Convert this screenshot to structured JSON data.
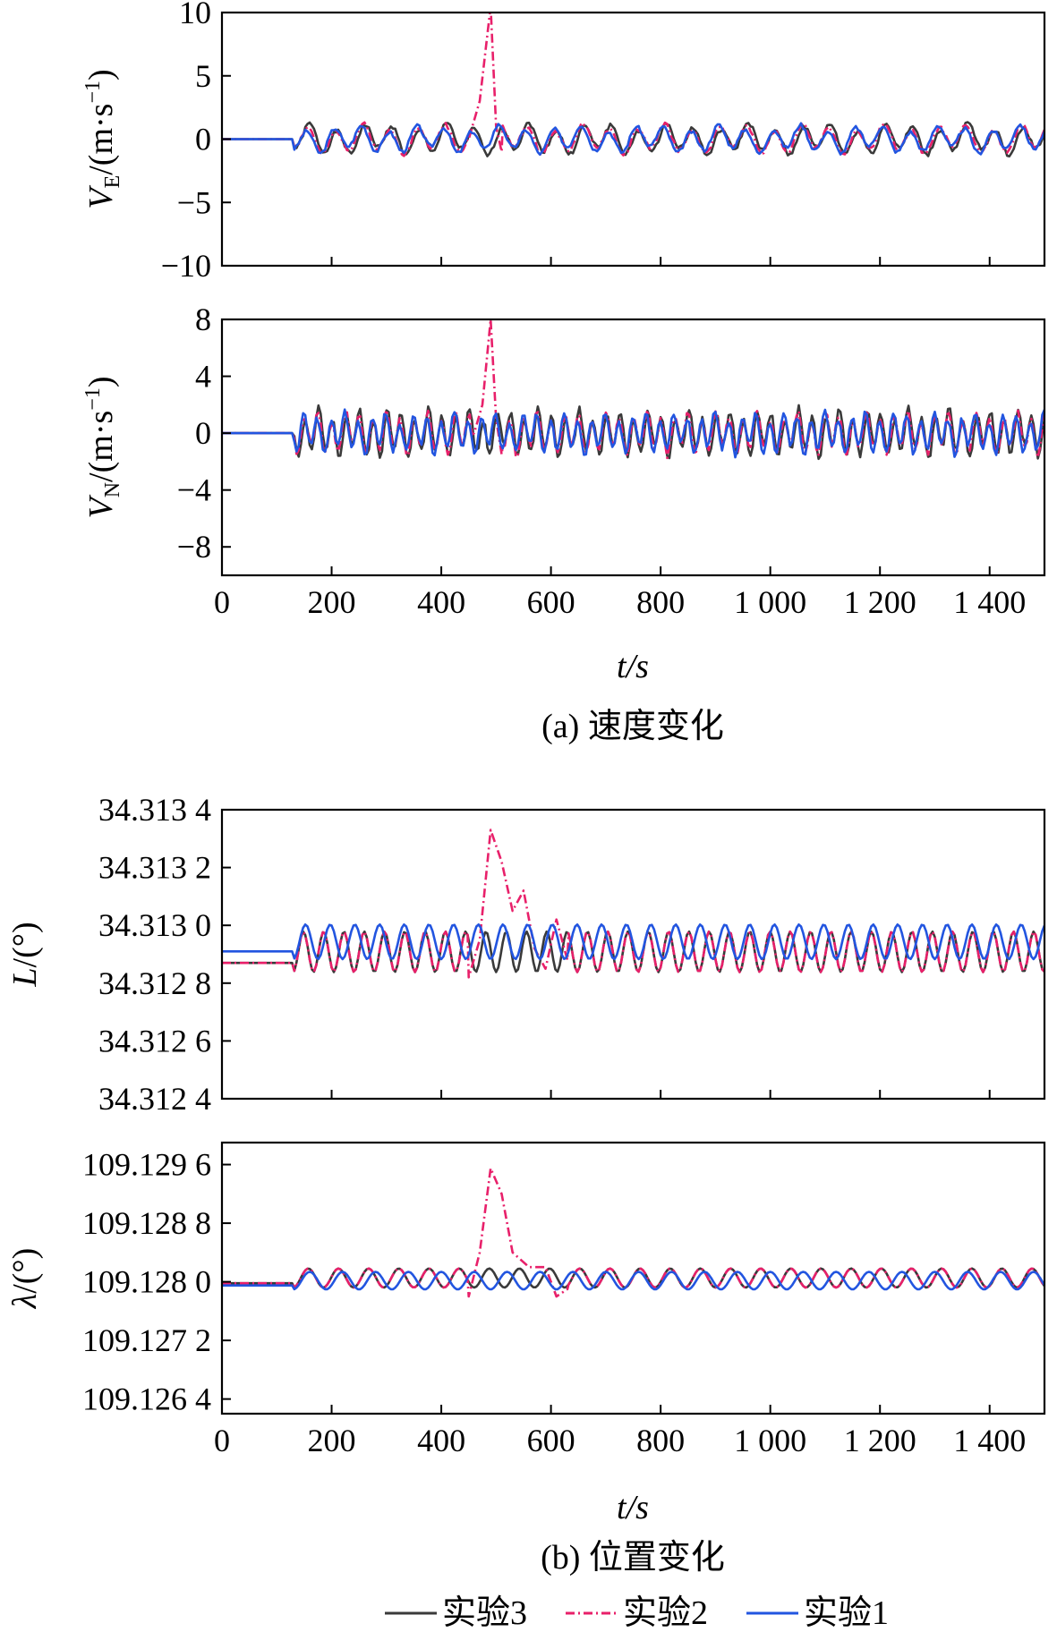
{
  "legend": [
    {
      "label": "实验3",
      "color": "#3a3a3a",
      "dash": ""
    },
    {
      "label": "实验2",
      "color": "#e8206a",
      "dash": "10 4 2 4"
    },
    {
      "label": "实验1",
      "color": "#2255e0",
      "dash": ""
    }
  ],
  "captions": {
    "a": "(a) 速度变化",
    "b": "(b) 位置变化"
  },
  "xlabel": "t/s",
  "chart_data": [
    {
      "id": "ve",
      "type": "line",
      "ylabel_main": "V",
      "ylabel_sub": "E",
      "ylabel_unit": "/(m·s",
      "ylabel_exp": "−1",
      "ylabel_close": ")",
      "xlim": [
        0,
        1500
      ],
      "ylim": [
        -10,
        10
      ],
      "yticks": [
        10,
        5,
        0,
        -5,
        -10
      ],
      "ytick_labels": [
        "10",
        "5",
        "0",
        "−5",
        "−10"
      ],
      "xticks": [
        0,
        200,
        400,
        600,
        800,
        1000,
        1200,
        1400
      ],
      "xtick_labels": [],
      "series": [
        {
          "name": "实验3",
          "kind": "vel",
          "amp": 0.95,
          "period": 50,
          "seed": 1
        },
        {
          "name": "实验2",
          "kind": "vel",
          "amp": 0.9,
          "period": 50,
          "seed": 2,
          "spike": {
            "x": [
              450,
              470,
              490,
              500,
              510
            ],
            "y": [
              0,
              3,
              10.5,
              1,
              -1
            ]
          }
        },
        {
          "name": "实验1",
          "kind": "vel",
          "amp": 0.85,
          "period": 50,
          "seed": 3
        }
      ]
    },
    {
      "id": "vn",
      "type": "line",
      "ylabel_main": "V",
      "ylabel_sub": "N",
      "ylabel_unit": "/(m·s",
      "ylabel_exp": "−1",
      "ylabel_close": ")",
      "xlim": [
        0,
        1500
      ],
      "ylim": [
        -10,
        8
      ],
      "yticks": [
        8,
        4,
        0,
        -4,
        -8
      ],
      "ytick_labels": [
        "8",
        "4",
        "0",
        "−4",
        "−8"
      ],
      "xticks": [
        0,
        200,
        400,
        600,
        800,
        1000,
        1200,
        1400
      ],
      "xtick_labels": [
        "0",
        "200",
        "400",
        "600",
        "800",
        "1 000",
        "1 200",
        "1 400"
      ],
      "series": [
        {
          "name": "实验3",
          "kind": "vel",
          "amp": 1.3,
          "period": 25,
          "seed": 4
        },
        {
          "name": "实验2",
          "kind": "vel",
          "amp": 1.2,
          "period": 25,
          "seed": 5,
          "spike": {
            "x": [
              460,
              475,
              490,
              500,
              510
            ],
            "y": [
              0,
              2,
              8,
              1,
              -1.5
            ]
          }
        },
        {
          "name": "实验1",
          "kind": "vel",
          "amp": 1.15,
          "period": 25,
          "seed": 6
        }
      ]
    },
    {
      "id": "lat",
      "type": "line",
      "ylabel_main": "L",
      "ylabel_unit": "/(°)",
      "xlim": [
        0,
        1500
      ],
      "ylim": [
        34.3124,
        34.3134
      ],
      "yticks": [
        34.3134,
        34.3132,
        34.313,
        34.3128,
        34.3126,
        34.3124
      ],
      "ytick_labels": [
        "34.313 4",
        "34.313 2",
        "34.313 0",
        "34.312 8",
        "34.312 6",
        "34.312 4"
      ],
      "xticks": [
        0,
        200,
        400,
        600,
        800,
        1000,
        1200,
        1400
      ],
      "xtick_labels": [],
      "series": [
        {
          "name": "实验3",
          "kind": "pos",
          "base": 34.31287,
          "amp": 7e-05,
          "period": 37,
          "start": 130
        },
        {
          "name": "实验2",
          "kind": "pos",
          "base": 34.31287,
          "amp": 7e-05,
          "period": 37,
          "start": 130,
          "spike": {
            "x": [
              450,
              470,
              490,
              510,
              530,
              550,
              570,
              590,
              610,
              630
            ],
            "y": [
              34.31282,
              34.31295,
              34.31333,
              34.31322,
              34.31305,
              34.31312,
              34.31292,
              34.31285,
              34.31302,
              34.31288
            ]
          }
        },
        {
          "name": "实验1",
          "kind": "pos",
          "base": 34.31291,
          "amp": 6e-05,
          "period": 45,
          "start": 130
        }
      ]
    },
    {
      "id": "lon",
      "type": "line",
      "ylabel_main": "λ",
      "ylabel_unit": "/(°)",
      "xlim": [
        0,
        1500
      ],
      "ylim": [
        109.1262,
        109.1299
      ],
      "yticks": [
        109.1296,
        109.1288,
        109.128,
        109.1272,
        109.1264
      ],
      "ytick_labels": [
        "109.129 6",
        "109.128 8",
        "109.128 0",
        "109.127 2",
        "109.126 4"
      ],
      "xticks": [
        0,
        200,
        400,
        600,
        800,
        1000,
        1200,
        1400
      ],
      "xtick_labels": [
        "0",
        "200",
        "400",
        "600",
        "800",
        "1 000",
        "1 200",
        "1 400"
      ],
      "series": [
        {
          "name": "实验3",
          "kind": "pos",
          "base": 109.12798,
          "amp": 0.00013,
          "period": 55,
          "start": 130
        },
        {
          "name": "实验2",
          "kind": "pos",
          "base": 109.12798,
          "amp": 0.00013,
          "period": 55,
          "start": 130,
          "spike": {
            "x": [
              450,
              470,
              490,
              510,
              530,
              560,
              590,
              610,
              630
            ],
            "y": [
              109.1278,
              109.1284,
              109.12955,
              109.1292,
              109.1284,
              109.1282,
              109.1282,
              109.1278,
              109.1279
            ]
          }
        },
        {
          "name": "实验1",
          "kind": "pos",
          "base": 109.12795,
          "amp": 0.00012,
          "period": 60,
          "start": 130
        }
      ]
    }
  ]
}
